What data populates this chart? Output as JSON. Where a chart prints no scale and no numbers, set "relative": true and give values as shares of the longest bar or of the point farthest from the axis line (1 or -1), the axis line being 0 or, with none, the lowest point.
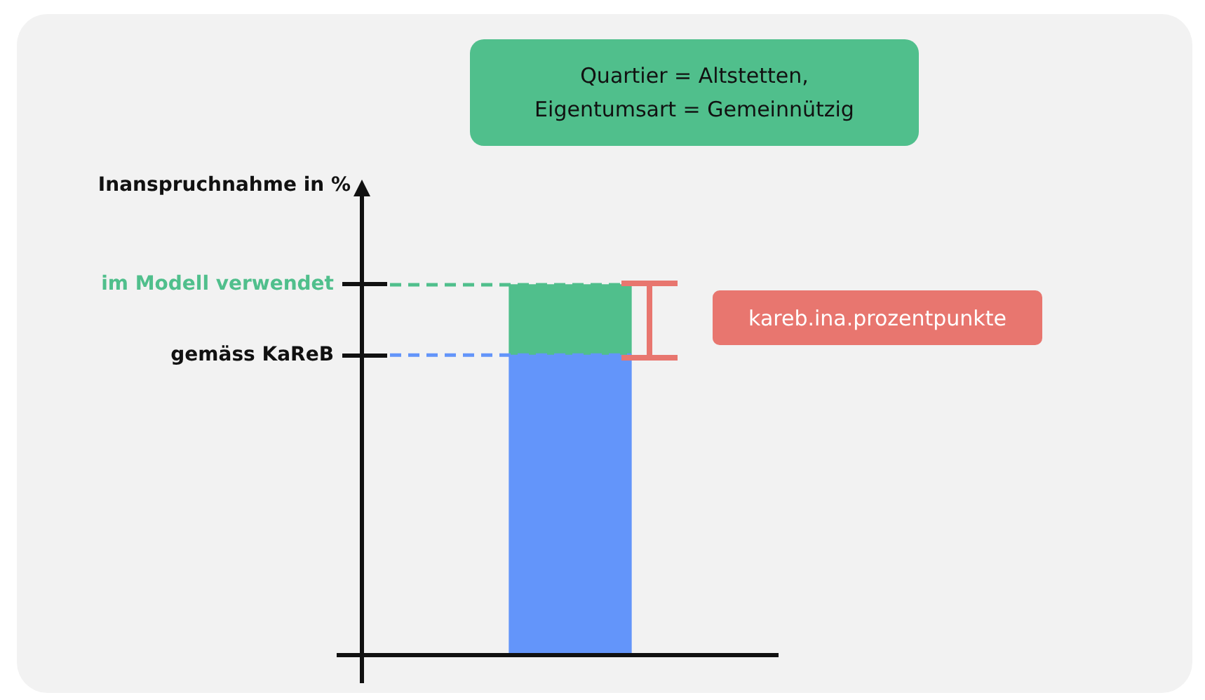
{
  "chart_data": {
    "type": "bar",
    "title": "Quartier = Altstetten, Eigentumsart = Gemeinnützig",
    "categories": [
      null
    ],
    "stacked": true,
    "relative": true,
    "legend": false,
    "grid": false,
    "series": [
      {
        "color": "#6395fa",
        "values": [
          0.81
        ]
      },
      {
        "color": "#50bf8c",
        "values": [
          0.19
        ]
      }
    ],
    "ref_lines": [
      {
        "axis": "y",
        "value": 1.0,
        "label": "im Modell verwendet",
        "color": "#50bf8c",
        "line_style": "dashed"
      },
      {
        "axis": "y",
        "value": 0.81,
        "label": "gemäss KaReB",
        "color": "#6395fa",
        "line_style": "dashed"
      }
    ],
    "annotations": [
      "Inanspruchnahme in %",
      "kareb.ina.prozentpunkte"
    ]
  }
}
